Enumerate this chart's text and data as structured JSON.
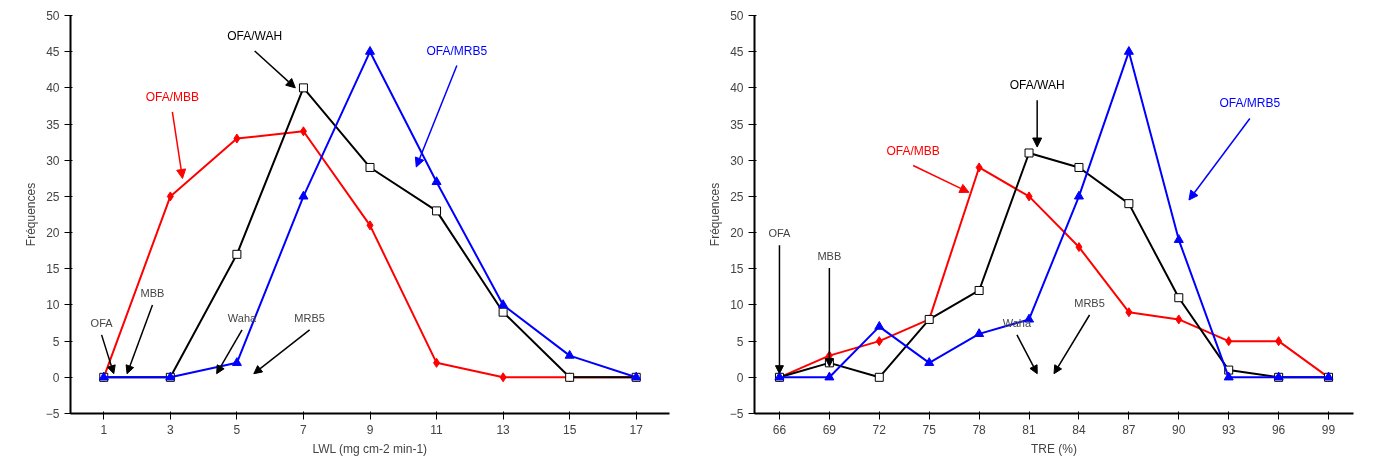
{
  "chart_data": [
    {
      "type": "line",
      "xlabel": "LWL (mg cm-2 min-1)",
      "ylabel": "Fréquences",
      "x": [
        1,
        3,
        5,
        7,
        9,
        11,
        13,
        15,
        17
      ],
      "xlim": [
        0,
        18
      ],
      "xticks": [
        1,
        3,
        5,
        7,
        9,
        11,
        13,
        15,
        17
      ],
      "ylim": [
        -5,
        50
      ],
      "yticks": [
        -5,
        0,
        5,
        10,
        15,
        20,
        25,
        30,
        35,
        40,
        45,
        50
      ],
      "grid": false,
      "legend": false,
      "series": [
        {
          "name": "OFA/MBB",
          "color": "#ff0000",
          "marker": "diamond",
          "values": [
            0,
            25,
            33,
            34,
            21,
            2,
            0,
            0,
            0
          ]
        },
        {
          "name": "OFA/WAH",
          "color": "#000000",
          "marker": "square",
          "values": [
            0,
            0,
            17,
            40,
            29,
            23,
            9,
            0,
            0
          ]
        },
        {
          "name": "OFA/MRB5",
          "color": "#0000ff",
          "marker": "triangle",
          "values": [
            0,
            0,
            2,
            25,
            45,
            27,
            10,
            3,
            0
          ]
        }
      ],
      "annotations": [
        {
          "text": "OFA",
          "x": 1.3,
          "y": 0.5
        },
        {
          "text": "MBB",
          "x": 1.7,
          "y": 0.5
        },
        "Waha",
        "MRB5"
      ]
    },
    {
      "type": "line",
      "xlabel": "TRE (%)",
      "ylabel": "Fréquences",
      "x": [
        66,
        69,
        72,
        75,
        78,
        81,
        84,
        87,
        90,
        93,
        96,
        99
      ],
      "xlim": [
        64.5,
        100.5
      ],
      "xticks": [
        66,
        69,
        72,
        75,
        78,
        81,
        84,
        87,
        90,
        93,
        96,
        99
      ],
      "ylim": [
        -5,
        50
      ],
      "yticks": [
        -5,
        0,
        5,
        10,
        15,
        20,
        25,
        30,
        35,
        40,
        45,
        50
      ],
      "grid": false,
      "legend": false,
      "series": [
        {
          "name": "OFA/MBB",
          "color": "#ff0000",
          "marker": "diamond",
          "values": [
            0,
            3,
            5,
            8,
            29,
            25,
            18,
            9,
            8,
            5,
            5,
            0
          ]
        },
        {
          "name": "OFA/WAH",
          "color": "#000000",
          "marker": "square",
          "values": [
            0,
            2,
            0,
            8,
            12,
            31,
            29,
            24,
            11,
            1,
            0,
            0
          ]
        },
        {
          "name": "OFA/MRB5",
          "color": "#0000ff",
          "marker": "triangle",
          "values": [
            0,
            0,
            7,
            2,
            6,
            8,
            25,
            45,
            19,
            0,
            0,
            0
          ]
        }
      ],
      "annotations": [
        {
          "text": "OFA",
          "x": 66,
          "y": 0.5
        },
        {
          "text": "MBB",
          "x": 69,
          "y": 1.5
        },
        "Waha",
        "MRB5"
      ]
    }
  ]
}
